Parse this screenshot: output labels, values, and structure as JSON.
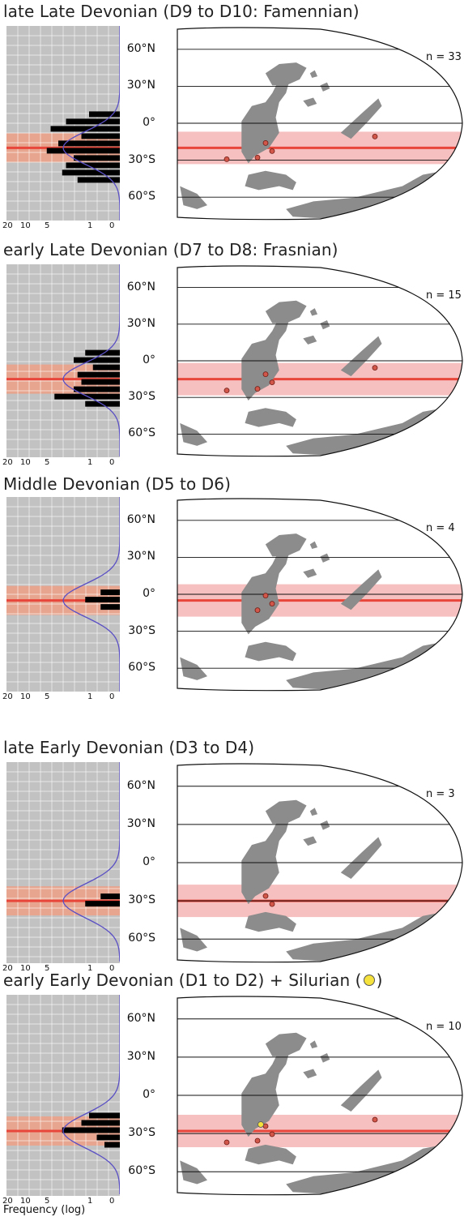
{
  "panels": [
    {
      "title": "late Late Devonian (D9 to D10: Famennian)",
      "n": "n = 33",
      "lat_labels": [
        "60°N",
        "30°N",
        "0°",
        "30°S",
        "60°S"
      ],
      "bars": [
        0.4,
        0.7,
        0.9,
        0.5,
        0.8,
        0.95,
        0.6,
        0.7,
        0.75,
        0.55
      ],
      "band_lat": -20
    },
    {
      "title": "early Late Devonian (D7 to D8: Frasnian)",
      "n": "n = 15",
      "lat_labels": [
        "60°N",
        "30°N",
        "0°",
        "30°S",
        "60°S"
      ],
      "bars": [
        0.45,
        0.6,
        0.35,
        0.55,
        0.5,
        0.6,
        0.85,
        0.45
      ],
      "band_lat": -15
    },
    {
      "title": "Middle Devonian (D5 to D6)",
      "n": "n = 4",
      "lat_labels": [
        "60°N",
        "30°N",
        "0°",
        "30°S",
        "60°S"
      ],
      "bars": [
        0.25,
        0.45,
        0.25
      ],
      "band_lat": -5
    },
    {
      "title": "late Early Devonian (D3 to D4)",
      "n": "n = 3",
      "lat_labels": [
        "60°N",
        "30°N",
        "0°",
        "30°S",
        "60°S"
      ],
      "bars": [
        0.25,
        0.45
      ],
      "band_lat": -30
    },
    {
      "title": "early Early Devonian (D1 to D2) + Silurian (",
      "title_tail": ")",
      "n": "n = 10",
      "lat_labels": [
        "60°N",
        "30°N",
        "0°",
        "30°S",
        "60°S"
      ],
      "bars": [
        0.4,
        0.5,
        0.75,
        0.3,
        0.2
      ],
      "band_lat": -28
    }
  ],
  "x_ticks": [
    "20",
    "10",
    "5",
    "1",
    "0"
  ],
  "x_axis_title": "Frequency (log)",
  "colors": {
    "land": "#8c8c8c",
    "band": "#f7c0c0",
    "band_line": "#e8463a",
    "hist_bg": "#c2c2c2",
    "hist_band": "#e7a58f",
    "dot": "#d2574b",
    "silurian_dot": "#f5e23c",
    "curve": "#5a4fc4"
  }
}
